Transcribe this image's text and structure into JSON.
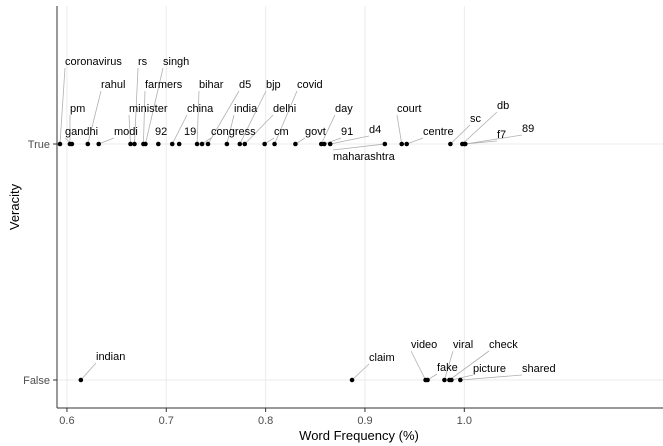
{
  "chart_data": {
    "type": "scatter",
    "title": "",
    "xlabel": "Word Frequency (%)",
    "ylabel": "Veracity",
    "xlim": [
      0.59,
      1.2
    ],
    "xticks": [
      0.6,
      0.7,
      0.8,
      0.9,
      1.0
    ],
    "xtick_labels": [
      "0.6",
      "0.7",
      "0.8",
      "0.9",
      "1.0"
    ],
    "categories": [
      "False",
      "True"
    ],
    "grid": true,
    "series": [
      {
        "category": "True",
        "points": [
          {
            "word": "coronavirus",
            "x": 0.593
          },
          {
            "word": "pm",
            "x": 0.603
          },
          {
            "word": "gandhi",
            "x": 0.605
          },
          {
            "word": "rahul",
            "x": 0.621
          },
          {
            "word": "modi",
            "x": 0.632
          },
          {
            "word": "minister",
            "x": 0.664
          },
          {
            "word": "rs",
            "x": 0.668
          },
          {
            "word": "farmers",
            "x": 0.677
          },
          {
            "word": "singh",
            "x": 0.679
          },
          {
            "word": "92",
            "x": 0.692
          },
          {
            "word": "china",
            "x": 0.706
          },
          {
            "word": "19",
            "x": 0.713
          },
          {
            "word": "bihar",
            "x": 0.731
          },
          {
            "word": "congress",
            "x": 0.736
          },
          {
            "word": "d5",
            "x": 0.742
          },
          {
            "word": "india",
            "x": 0.761
          },
          {
            "word": "bjp",
            "x": 0.774
          },
          {
            "word": "delhi",
            "x": 0.779
          },
          {
            "word": "cm",
            "x": 0.799
          },
          {
            "word": "covid",
            "x": 0.809
          },
          {
            "word": "govt",
            "x": 0.83
          },
          {
            "word": "day",
            "x": 0.856
          },
          {
            "word": "91",
            "x": 0.859
          },
          {
            "word": "d4",
            "x": 0.865
          },
          {
            "word": "maharashtra",
            "x": 0.92
          },
          {
            "word": "court",
            "x": 0.937
          },
          {
            "word": "centre",
            "x": 0.942
          },
          {
            "word": "sc",
            "x": 0.986
          },
          {
            "word": "db",
            "x": 0.998
          },
          {
            "word": "f7",
            "x": 1.0
          },
          {
            "word": "89",
            "x": 1.001
          }
        ]
      },
      {
        "category": "False",
        "points": [
          {
            "word": "indian",
            "x": 0.614
          },
          {
            "word": "claim",
            "x": 0.887
          },
          {
            "word": "video",
            "x": 0.961
          },
          {
            "word": "fake",
            "x": 0.963
          },
          {
            "word": "viral",
            "x": 0.98
          },
          {
            "word": "check",
            "x": 0.985
          },
          {
            "word": "picture",
            "x": 0.987
          },
          {
            "word": "shared",
            "x": 0.996
          }
        ]
      }
    ]
  }
}
